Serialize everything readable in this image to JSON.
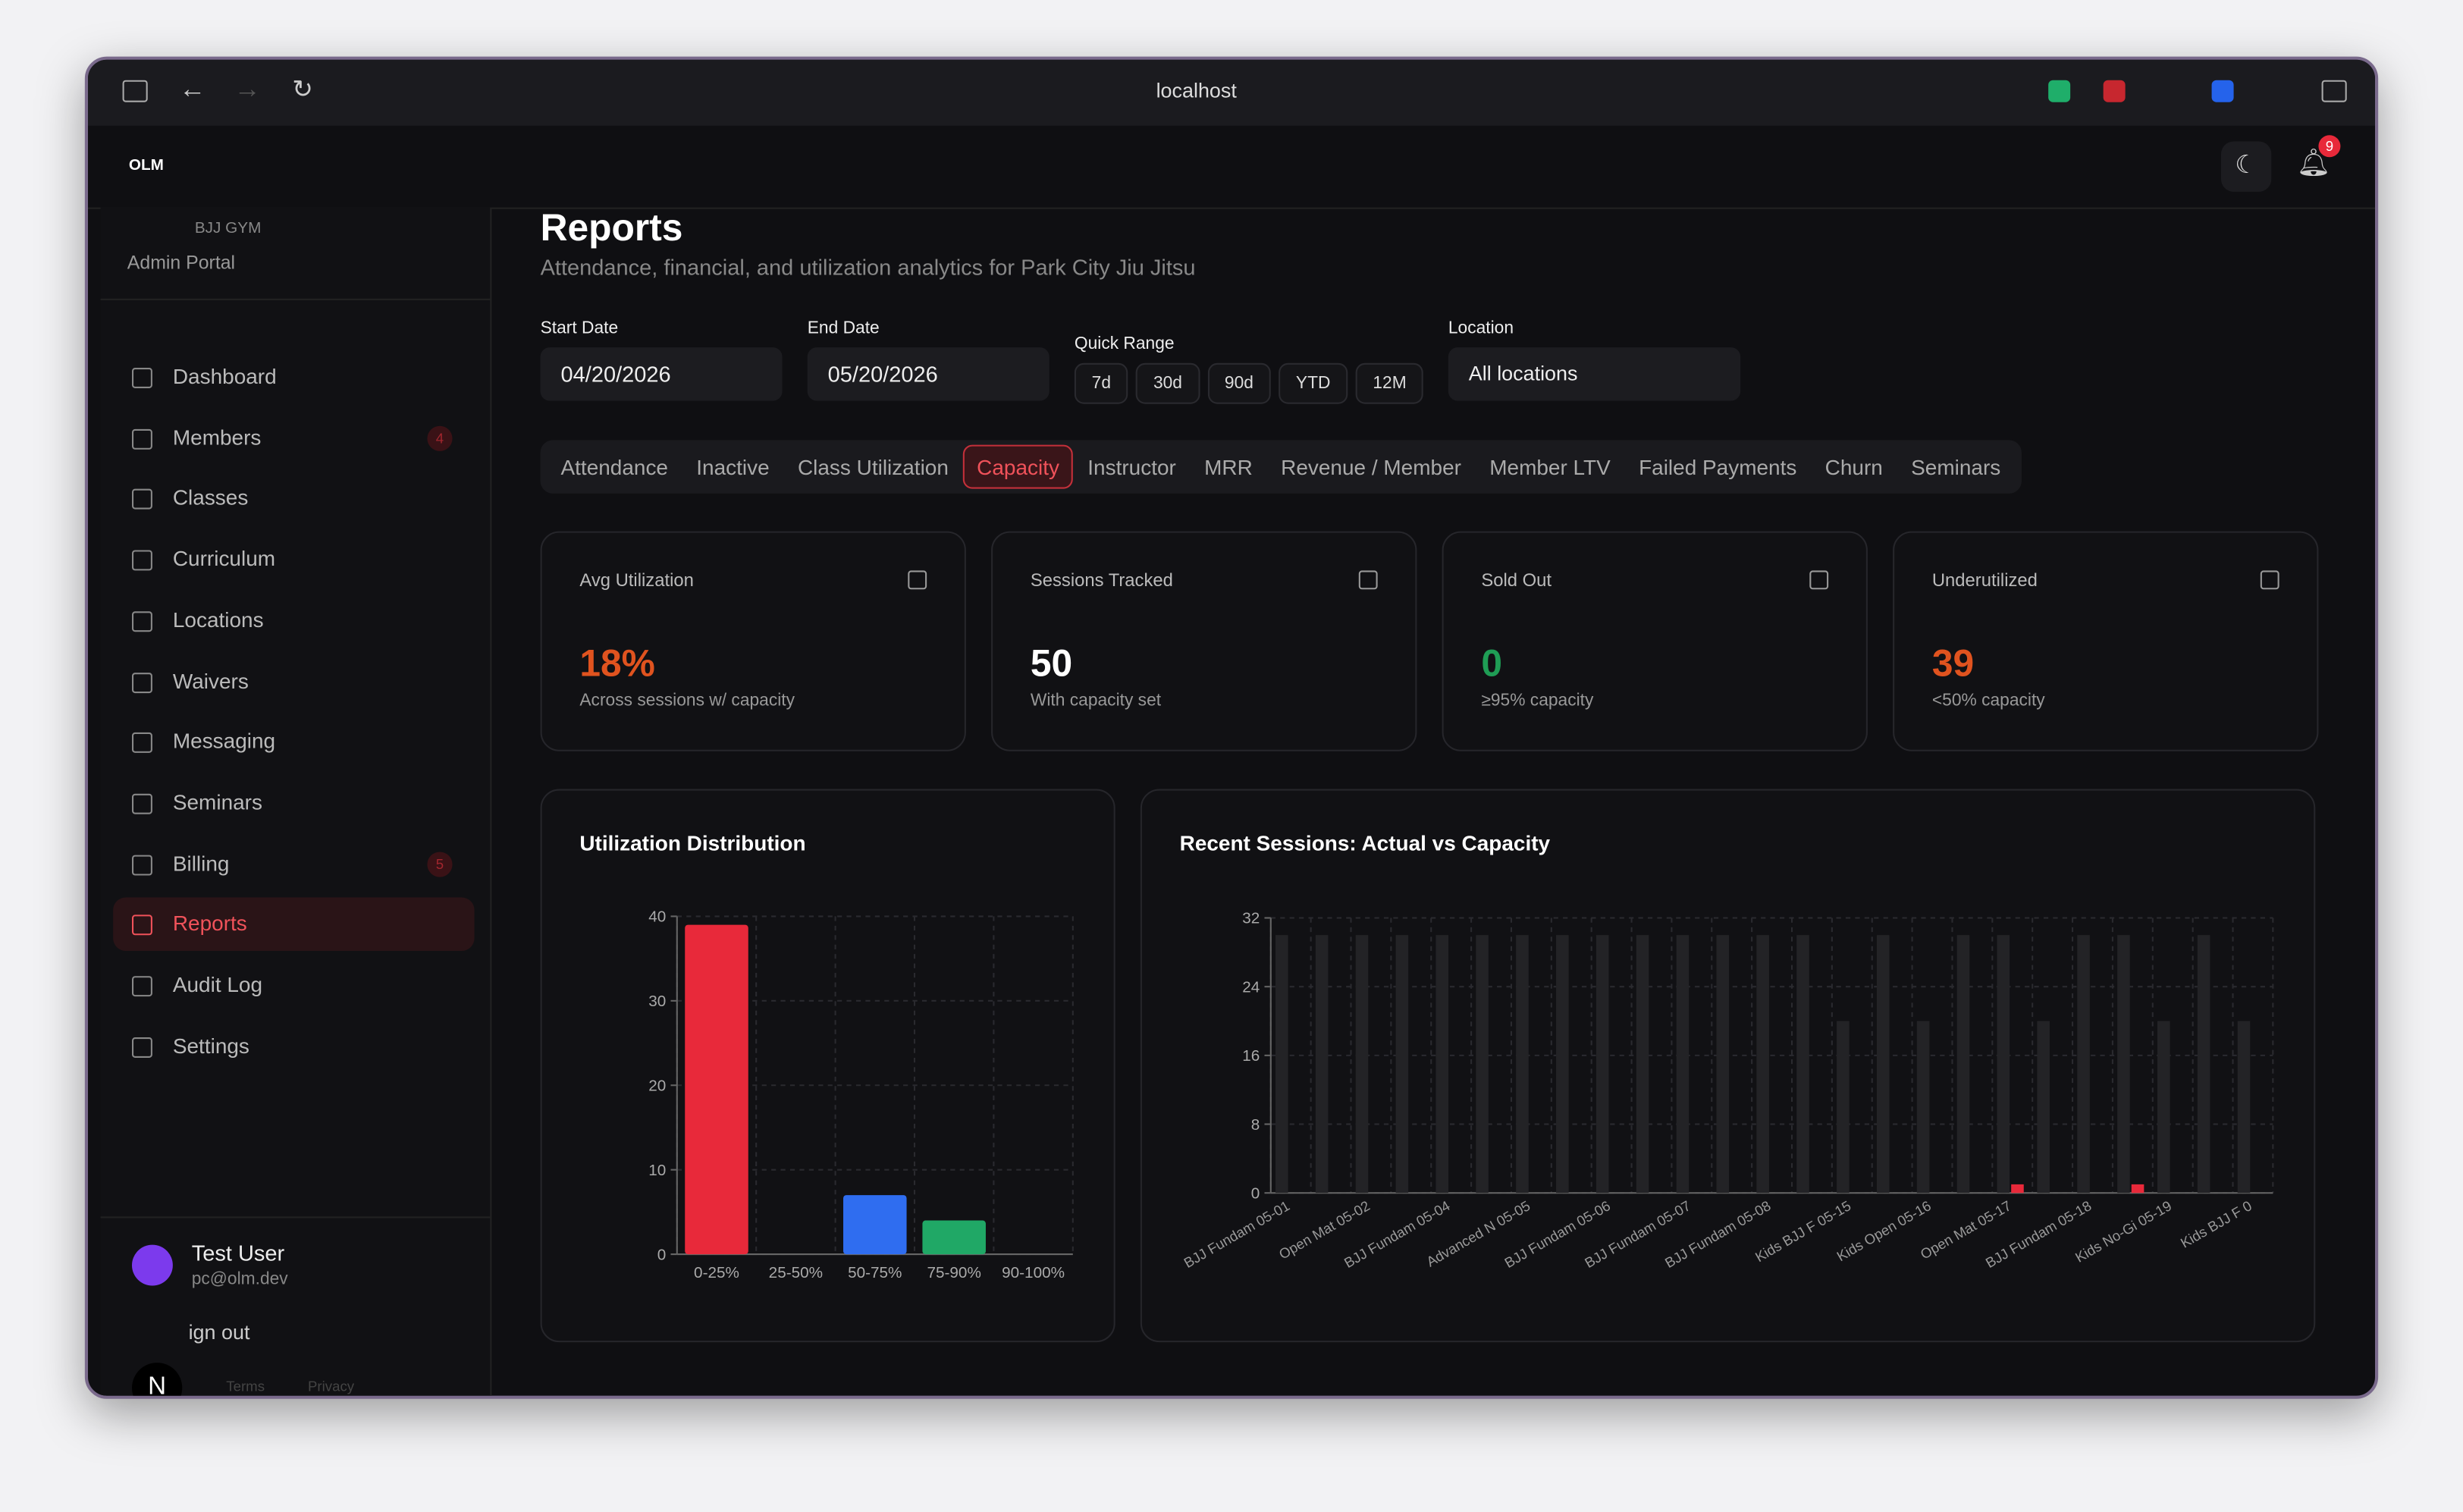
{
  "browser": {
    "url": "localhost"
  },
  "app": {
    "logo": "OLM",
    "notifications": 9
  },
  "sidebar": {
    "org": "BJJ GYM",
    "portal": "Admin Portal",
    "nav": [
      {
        "label": "Dashboard"
      },
      {
        "label": "Members",
        "badge": 4
      },
      {
        "label": "Classes"
      },
      {
        "label": "Curriculum"
      },
      {
        "label": "Locations"
      },
      {
        "label": "Waivers"
      },
      {
        "label": "Messaging"
      },
      {
        "label": "Seminars"
      },
      {
        "label": "Billing",
        "badge": 5
      },
      {
        "label": "Reports",
        "active": true
      },
      {
        "label": "Audit Log"
      },
      {
        "label": "Settings"
      }
    ],
    "user": {
      "initial": "N",
      "name": "Test User",
      "email": "pc@olm.dev"
    },
    "sign_out": "ign out",
    "links": [
      "Terms",
      "Privacy"
    ]
  },
  "page": {
    "title": "Reports",
    "subtitle": "Attendance, financial, and utilization analytics for Park City Jiu Jitsu"
  },
  "filters": {
    "start_label": "Start Date",
    "start_value": "04/20/2026",
    "end_label": "End Date",
    "end_value": "05/20/2026",
    "quick_label": "Quick Range",
    "quick": [
      "7d",
      "30d",
      "90d",
      "YTD",
      "12M"
    ],
    "location_label": "Location",
    "location_value": "All locations"
  },
  "tabs": {
    "items": [
      "Attendance",
      "Inactive",
      "Class Utilization",
      "Capacity",
      "Instructor",
      "MRR",
      "Revenue / Member",
      "Member LTV",
      "Failed Payments",
      "Churn",
      "Seminars"
    ],
    "active": 3
  },
  "kpis": [
    {
      "label": "Avg Utilization",
      "value": "18%",
      "note": "Across sessions w/ capacity",
      "color": "#e0531f"
    },
    {
      "label": "Sessions Tracked",
      "value": "50",
      "note": "With capacity set",
      "color": "#ffffff"
    },
    {
      "label": "Sold Out",
      "value": "0",
      "note": "≥95% capacity",
      "color": "#1f9d55"
    },
    {
      "label": "Underutilized",
      "value": "39",
      "note": "<50% capacity",
      "color": "#e0531f"
    }
  ],
  "charts": [
    {
      "type": "bar",
      "title": "Utilization Distribution",
      "categories": [
        "0-25%",
        "25-50%",
        "50-75%",
        "75-90%",
        "90-100%"
      ],
      "values": [
        39,
        0,
        7,
        4,
        0
      ],
      "colors": [
        "#e8293a",
        "#888888",
        "#2f6df0",
        "#20a866",
        "#888888"
      ],
      "ylim": [
        0,
        40
      ],
      "yticks": [
        0,
        10,
        20,
        30,
        40
      ],
      "grid": true
    },
    {
      "type": "grouped-bar",
      "title": "Recent Sessions: Actual vs Capacity",
      "categories": [
        "BJJ Fundam 05-01",
        null,
        "Open Mat 05-02",
        null,
        "BJJ Fundam 05-04",
        null,
        "Advanced N 05-05",
        null,
        "BJJ Fundam 05-06",
        null,
        "BJJ Fundam 05-07",
        null,
        "BJJ Fundam 05-08",
        null,
        "Kids BJJ F 05-15",
        null,
        "Kids Open 05-16",
        null,
        "Open Mat 05-17",
        null,
        "BJJ Fundam 05-18",
        null,
        "Kids No-Gi 05-19",
        null,
        "Kids BJJ F 0"
      ],
      "series": [
        {
          "color": "#232326",
          "values": [
            30,
            30,
            30,
            30,
            30,
            30,
            30,
            30,
            30,
            30,
            30,
            30,
            30,
            30,
            20,
            30,
            20,
            30,
            30,
            20,
            30,
            30,
            20,
            30,
            20
          ]
        },
        {
          "color": "#e8293a",
          "values": [
            0,
            0,
            0,
            0,
            0,
            0,
            0,
            0,
            0,
            0,
            0,
            0,
            0,
            0,
            0,
            0,
            0,
            0,
            1,
            0,
            0,
            1,
            0,
            0,
            0
          ]
        }
      ],
      "ylim": [
        0,
        32
      ],
      "yticks": [
        0,
        8,
        16,
        24,
        32
      ],
      "grid": true
    }
  ]
}
